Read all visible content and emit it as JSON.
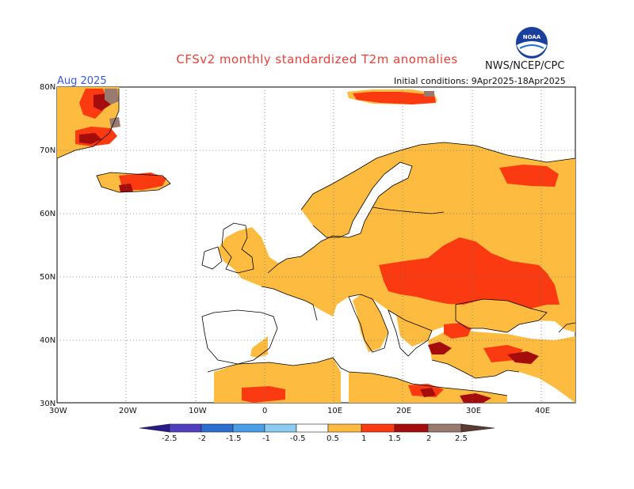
{
  "header": {
    "title": "CFSv2 monthly standardized T2m anomalies",
    "agency": "NWS/NCEP/CPC",
    "month": "Aug 2025",
    "initial_conditions": "Initial conditions: 9Apr2025-18Apr2025",
    "logo_text": "NOAA"
  },
  "map": {
    "lon_range": [
      -30,
      45
    ],
    "lat_range": [
      30,
      80
    ],
    "lat_labels": [
      "30N",
      "40N",
      "50N",
      "60N",
      "70N",
      "80N"
    ],
    "lon_labels": [
      "30W",
      "20W",
      "10W",
      "0",
      "10E",
      "20E",
      "30E",
      "40E"
    ],
    "grid": "dotted",
    "colors": {
      "anom_0_5_to_1": "#fdbb40",
      "anom_1_to_1_5": "#fc3a12",
      "anom_1_5_to_2": "#a50c0c",
      "anom_2_to_2_5": "#9a7a6e",
      "above_2_5": "#5b3a32"
    }
  },
  "colorbar": {
    "labels": [
      "-2.5",
      "-2",
      "-1.5",
      "-1",
      "-0.5",
      "0.5",
      "1",
      "1.5",
      "2",
      "2.5"
    ],
    "colors": [
      "#2b1a8c",
      "#5040c0",
      "#2d6fd0",
      "#4a9ee6",
      "#8dcbf2",
      "#ffffff",
      "#fdbb40",
      "#fc3a12",
      "#a50c0c",
      "#9a7a6e",
      "#5b3a32"
    ]
  }
}
